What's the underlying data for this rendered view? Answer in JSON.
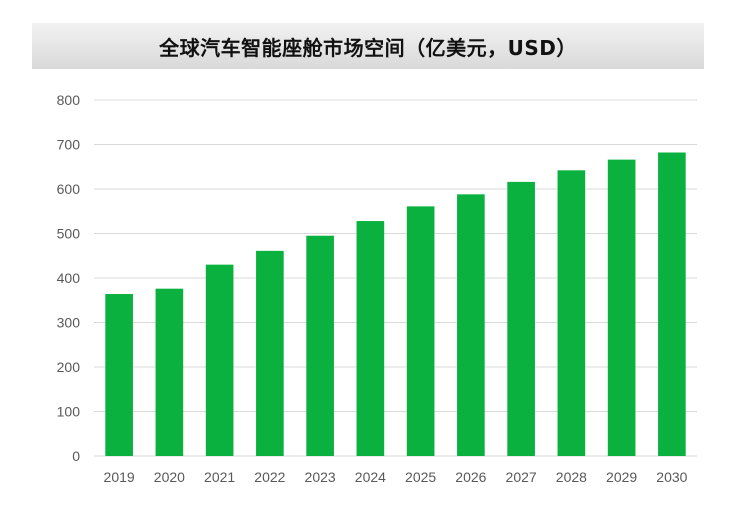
{
  "chart_data": {
    "type": "bar",
    "title": "全球汽车智能座舱市场空间（亿美元，USD）",
    "categories": [
      "2019",
      "2020",
      "2021",
      "2022",
      "2023",
      "2024",
      "2025",
      "2026",
      "2027",
      "2028",
      "2029",
      "2030"
    ],
    "values": [
      364,
      376,
      430,
      461,
      495,
      528,
      561,
      588,
      616,
      642,
      666,
      682
    ],
    "ylim": [
      0,
      800
    ],
    "yticks": [
      0,
      100,
      200,
      300,
      400,
      500,
      600,
      700,
      800
    ],
    "grid": true,
    "legend": "none",
    "colors": {
      "bar": "#0bb13f",
      "grid": "#d9d9d9",
      "title_bg": "#e3e3e3"
    }
  }
}
